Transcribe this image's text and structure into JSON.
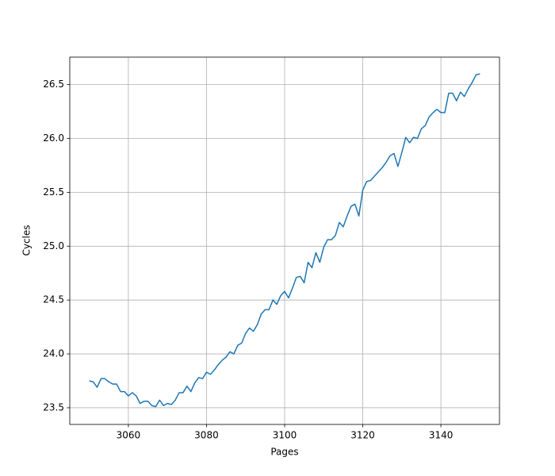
{
  "chart_data": {
    "type": "line",
    "xlabel": "Pages",
    "ylabel": "Cycles",
    "x": [
      3050,
      3051,
      3052,
      3053,
      3054,
      3055,
      3056,
      3057,
      3058,
      3059,
      3060,
      3061,
      3062,
      3063,
      3064,
      3065,
      3066,
      3067,
      3068,
      3069,
      3070,
      3071,
      3072,
      3073,
      3074,
      3075,
      3076,
      3077,
      3078,
      3079,
      3080,
      3081,
      3082,
      3083,
      3084,
      3085,
      3086,
      3087,
      3088,
      3089,
      3090,
      3091,
      3092,
      3093,
      3094,
      3095,
      3096,
      3097,
      3098,
      3099,
      3100,
      3101,
      3102,
      3103,
      3104,
      3105,
      3106,
      3107,
      3108,
      3109,
      3110,
      3111,
      3112,
      3113,
      3114,
      3115,
      3116,
      3117,
      3118,
      3119,
      3120,
      3121,
      3122,
      3123,
      3124,
      3125,
      3126,
      3127,
      3128,
      3129,
      3130,
      3131,
      3132,
      3133,
      3134,
      3135,
      3136,
      3137,
      3138,
      3139,
      3140,
      3141,
      3142,
      3143,
      3144,
      3145,
      3146,
      3147,
      3148,
      3149,
      3150
    ],
    "series": [
      {
        "name": "Cycles",
        "color": "#1f77b4",
        "values": [
          23.75,
          23.74,
          23.69,
          23.77,
          23.77,
          23.74,
          23.72,
          23.72,
          23.65,
          23.65,
          23.61,
          23.64,
          23.61,
          23.54,
          23.56,
          23.56,
          23.52,
          23.51,
          23.57,
          23.52,
          23.54,
          23.53,
          23.57,
          23.64,
          23.64,
          23.7,
          23.65,
          23.73,
          23.78,
          23.77,
          23.83,
          23.81,
          23.85,
          23.9,
          23.94,
          23.97,
          24.02,
          24.0,
          24.08,
          24.1,
          24.19,
          24.24,
          24.21,
          24.27,
          24.37,
          24.41,
          24.41,
          24.5,
          24.46,
          24.54,
          24.58,
          24.52,
          24.61,
          24.71,
          24.72,
          24.66,
          24.85,
          24.8,
          24.94,
          24.85,
          24.99,
          25.06,
          25.06,
          25.1,
          25.22,
          25.18,
          25.28,
          25.37,
          25.39,
          25.28,
          25.52,
          25.6,
          25.61,
          25.65,
          25.69,
          25.73,
          25.78,
          25.84,
          25.86,
          25.74,
          25.87,
          26.01,
          25.96,
          26.01,
          26.0,
          26.09,
          26.12,
          26.2,
          26.24,
          26.27,
          26.24,
          26.24,
          26.42,
          26.42,
          26.35,
          26.43,
          26.39,
          26.46,
          26.52,
          26.59,
          26.6
        ]
      }
    ],
    "xlim": [
      3045,
      3155
    ],
    "ylim": [
      23.345,
      26.755
    ],
    "xticks": [
      3060,
      3080,
      3100,
      3120,
      3140
    ],
    "yticks": [
      23.5,
      {
        "value": 24,
        "label": "24.0"
      },
      24.5,
      {
        "value": 25,
        "label": "25.0"
      },
      25.5,
      {
        "value": 26,
        "label": "26.0"
      },
      26.5
    ],
    "grid": true
  }
}
